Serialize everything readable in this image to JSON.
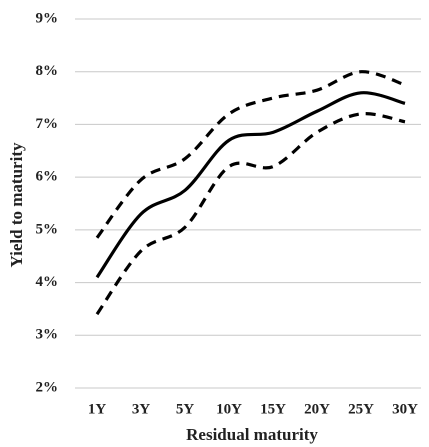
{
  "chart_data": {
    "type": "line",
    "x_label": "Residual maturity",
    "y_label": "Yield to maturity",
    "categories": [
      "1Y",
      "3Y",
      "5Y",
      "10Y",
      "15Y",
      "20Y",
      "25Y",
      "30Y"
    ],
    "series": [
      {
        "color": "#000000",
        "style": "dashed",
        "values": [
          4.85,
          5.95,
          6.35,
          7.2,
          7.5,
          7.65,
          8.0,
          7.75
        ]
      },
      {
        "color": "#000000",
        "style": "solid",
        "values": [
          4.1,
          5.3,
          5.75,
          6.7,
          6.85,
          7.25,
          7.6,
          7.4
        ]
      },
      {
        "color": "#000000",
        "style": "dashed",
        "values": [
          3.4,
          4.6,
          5.05,
          6.2,
          6.2,
          6.85,
          7.2,
          7.05
        ]
      }
    ],
    "ylim": [
      2,
      9
    ],
    "yticks": [
      {
        "value": 2,
        "label": "2%"
      },
      {
        "value": 3,
        "label": "3%"
      },
      {
        "value": 4,
        "label": "4%"
      },
      {
        "value": 5,
        "label": "5%"
      },
      {
        "value": 6,
        "label": "6%"
      },
      {
        "value": 7,
        "label": "7%"
      },
      {
        "value": 8,
        "label": "8%"
      },
      {
        "value": 9,
        "label": "9%"
      }
    ],
    "grid": true
  }
}
